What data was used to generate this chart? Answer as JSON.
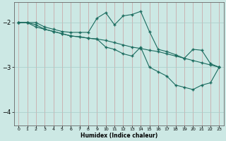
{
  "xlabel": "Humidex (Indice chaleur)",
  "bg_color": "#cce8e4",
  "line_color": "#1a6b5e",
  "xlim": [
    -0.5,
    23.5
  ],
  "ylim": [
    -4.3,
    -1.55
  ],
  "yticks": [
    -4,
    -3,
    -2
  ],
  "xticks": [
    0,
    1,
    2,
    3,
    4,
    5,
    6,
    7,
    8,
    9,
    10,
    11,
    12,
    13,
    14,
    15,
    16,
    17,
    18,
    19,
    20,
    21,
    22,
    23
  ],
  "series1_x": [
    0,
    1,
    2,
    3,
    4,
    5,
    6,
    7,
    8,
    9,
    10,
    11,
    12,
    13,
    14,
    15,
    16,
    17,
    18,
    19,
    20,
    21,
    22,
    23
  ],
  "series1_y": [
    -2.0,
    -2.0,
    -2.0,
    -2.1,
    -2.15,
    -2.2,
    -2.22,
    -2.22,
    -2.22,
    -1.9,
    -1.78,
    -2.05,
    -1.85,
    -1.82,
    -1.75,
    -2.2,
    -2.6,
    -2.65,
    -2.72,
    -2.8,
    -2.6,
    -2.62,
    -2.92,
    -3.0
  ],
  "series2_x": [
    0,
    1,
    2,
    3,
    4,
    5,
    6,
    7,
    8,
    9,
    10,
    11,
    12,
    13,
    14,
    15,
    16,
    17,
    18,
    19,
    20,
    21,
    22,
    23
  ],
  "series2_y": [
    -2.0,
    -2.0,
    -2.05,
    -2.15,
    -2.2,
    -2.25,
    -2.3,
    -2.32,
    -2.35,
    -2.37,
    -2.4,
    -2.45,
    -2.5,
    -2.55,
    -2.58,
    -2.62,
    -2.65,
    -2.7,
    -2.75,
    -2.8,
    -2.85,
    -2.9,
    -2.95,
    -3.0
  ],
  "series3_x": [
    0,
    1,
    2,
    3,
    4,
    5,
    6,
    7,
    8,
    9,
    10,
    11,
    12,
    13,
    14,
    15,
    16,
    17,
    18,
    19,
    20,
    21,
    22,
    23
  ],
  "series3_y": [
    -2.0,
    -2.0,
    -2.1,
    -2.15,
    -2.2,
    -2.25,
    -2.3,
    -2.32,
    -2.35,
    -2.37,
    -2.55,
    -2.6,
    -2.7,
    -2.75,
    -2.55,
    -3.0,
    -3.1,
    -3.2,
    -3.4,
    -3.45,
    -3.5,
    -3.4,
    -3.35,
    -3.0
  ]
}
